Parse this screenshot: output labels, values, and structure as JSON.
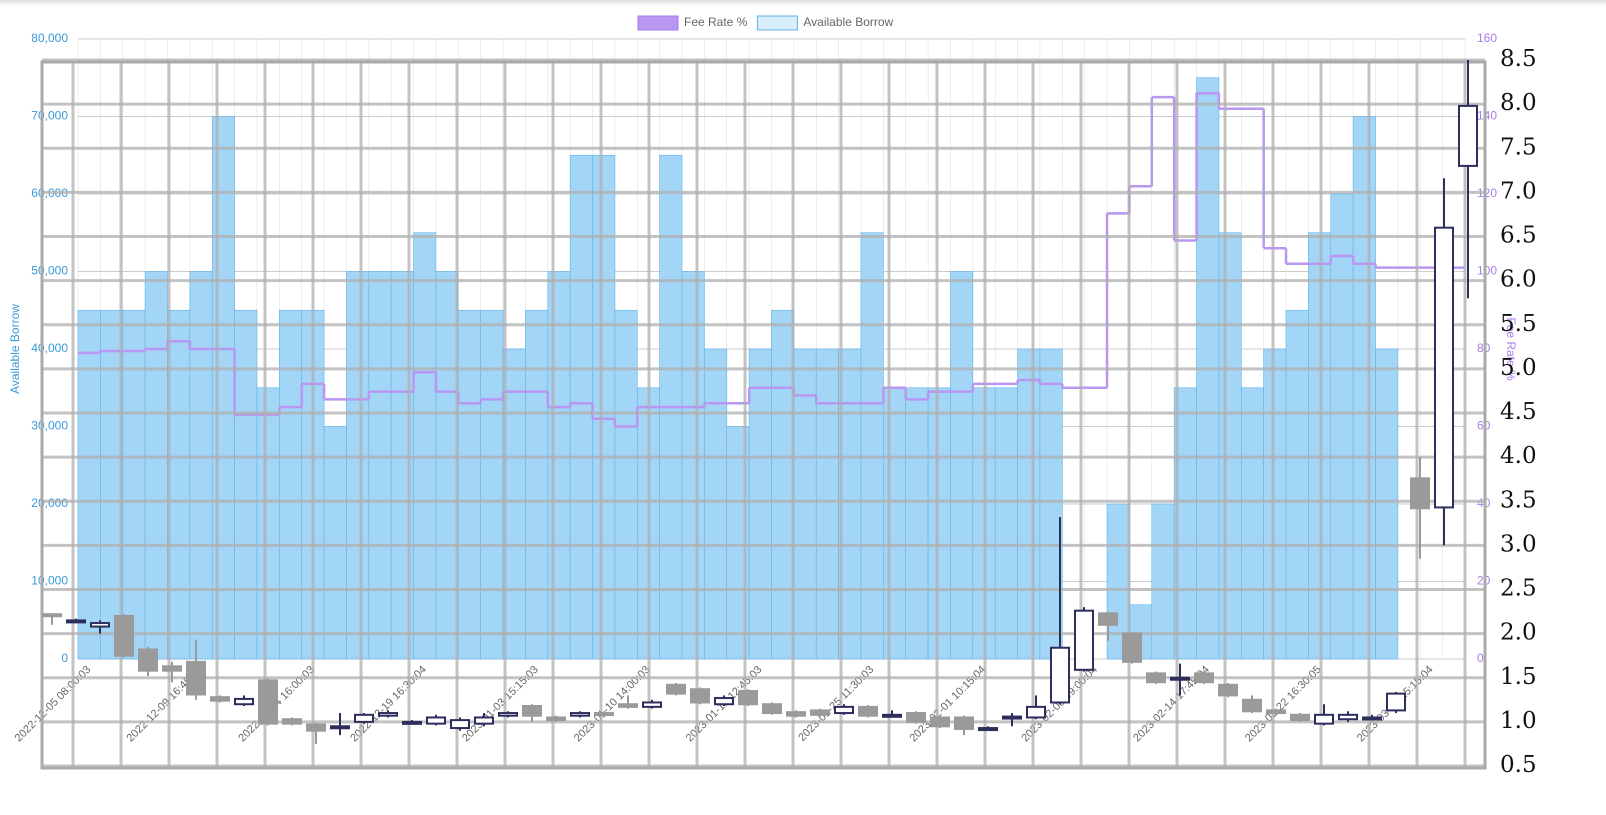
{
  "chart_data": [
    {
      "type": "bar",
      "legend": "top",
      "grid": true,
      "categories": [
        "2022-12-05 08:00:03",
        null,
        null,
        null,
        null,
        "2022-12-09 16:45:03",
        null,
        null,
        null,
        null,
        "2022-12-14 16:00:03",
        null,
        null,
        null,
        null,
        "2022-12-19 16:30:04",
        null,
        null,
        null,
        null,
        "2023-01-03 15:15:03",
        null,
        null,
        null,
        null,
        "2023-01-10 14:00:03",
        null,
        null,
        null,
        null,
        "2023-01-18 12:45:03",
        null,
        null,
        null,
        null,
        "2023-01-25 11:30:03",
        null,
        null,
        null,
        null,
        "2023-02-01 10:15:04",
        null,
        null,
        null,
        null,
        "2023-02-08 09:00:04",
        null,
        null,
        null,
        null,
        "2023-02-14 17:45:04",
        null,
        null,
        null,
        null,
        "2023-02-22 16:30:05",
        null,
        null,
        null,
        null,
        "2023-03-01 15:15:04",
        null
      ],
      "y_label": "Available Borrow",
      "y2_label": "Fee Rate %",
      "ylim": [
        0,
        80000
      ],
      "yticks": [
        0,
        {
          "value": 10000,
          "label": "10,000"
        },
        {
          "value": 20000,
          "label": "20,000"
        },
        {
          "value": 30000,
          "label": "30,000"
        },
        {
          "value": 40000,
          "label": "40,000"
        },
        {
          "value": 50000,
          "label": "50,000"
        },
        {
          "value": 60000,
          "label": "60,000"
        },
        {
          "value": 70000,
          "label": "70,000"
        },
        {
          "value": 80000,
          "label": "80,000"
        }
      ],
      "y2lim": [
        0,
        160
      ],
      "y2ticks": [
        0,
        20,
        40,
        60,
        80,
        100,
        120,
        140,
        160
      ],
      "series": [
        {
          "name": "Available Borrow",
          "type": "bar",
          "color": "#a3d5f7",
          "edge": "#5fb3ea",
          "values": [
            45000,
            45000,
            45000,
            50000,
            45000,
            50000,
            70000,
            45000,
            35000,
            45000,
            45000,
            30000,
            50000,
            50000,
            50000,
            55000,
            50000,
            45000,
            45000,
            40000,
            45000,
            50000,
            65000,
            65000,
            45000,
            35000,
            65000,
            50000,
            40000,
            30000,
            40000,
            45000,
            40000,
            40000,
            40000,
            55000,
            35000,
            35000,
            35000,
            50000,
            35000,
            35000,
            40000,
            40000,
            0,
            0,
            20000,
            7000,
            20000,
            35000,
            75000,
            55000,
            35000,
            40000,
            45000,
            55000,
            60000,
            70000,
            40000,
            0,
            0,
            0
          ]
        },
        {
          "name": "Fee Rate %",
          "type": "line",
          "axis": "y2",
          "color": "#b896f2",
          "values": [
            79,
            79.5,
            79.5,
            80,
            82,
            80,
            80,
            63,
            63,
            65,
            71,
            67,
            67,
            69,
            69,
            74,
            69,
            66,
            67,
            69,
            69,
            65,
            66,
            62,
            60,
            65,
            65,
            65,
            66,
            66,
            70,
            70,
            68,
            66,
            66,
            66,
            70,
            67,
            69,
            69,
            71,
            71,
            72,
            71,
            70,
            70,
            115,
            122,
            145,
            108,
            146,
            142,
            142,
            106,
            102,
            102,
            104,
            102,
            101,
            101,
            101,
            101
          ]
        }
      ]
    },
    {
      "type": "candlestick",
      "grid": true,
      "up_color": "#2e2e5e",
      "down_color": "#9a9a9a",
      "ylim": [
        0.5,
        8.5
      ],
      "yticks": [
        0.5,
        {
          "value": 1,
          "label": "1.0"
        },
        1.5,
        {
          "value": 2,
          "label": "2.0"
        },
        2.5,
        {
          "value": 3,
          "label": "3.0"
        },
        3.5,
        {
          "value": 4,
          "label": "4.0"
        },
        4.5,
        {
          "value": 5,
          "label": "5.0"
        },
        5.5,
        {
          "value": 6,
          "label": "6.0"
        },
        6.5,
        {
          "value": 7,
          "label": "7.0"
        },
        7.5,
        {
          "value": 8,
          "label": "8.0"
        },
        8.5
      ],
      "open": [
        2.22,
        2.15,
        2.08,
        2.2,
        1.82,
        1.63,
        1.68,
        1.28,
        1.2,
        1.47,
        1.03,
        0.97,
        0.93,
        1.0,
        1.07,
        1.0,
        0.98,
        0.93,
        0.98,
        1.07,
        1.18,
        1.05,
        1.07,
        1.1,
        1.2,
        1.17,
        1.42,
        1.37,
        1.2,
        1.35,
        1.2,
        1.11,
        1.13,
        1.1,
        1.17,
        1.08,
        1.1,
        1.05,
        1.05,
        0.93,
        1.05,
        1.05,
        1.22,
        1.59,
        2.23,
        2.0,
        1.55,
        1.5,
        1.55,
        1.42,
        1.25,
        1.13,
        1.08,
        0.98,
        1.03,
        1.05,
        1.13,
        3.76,
        3.43,
        7.3
      ],
      "high": [
        2.23,
        2.17,
        2.15,
        2.22,
        1.85,
        1.68,
        1.93,
        1.3,
        1.3,
        1.49,
        1.05,
        0.99,
        1.1,
        1.1,
        1.13,
        1.02,
        1.08,
        1.05,
        1.1,
        1.12,
        1.2,
        1.07,
        1.12,
        1.12,
        1.3,
        1.25,
        1.44,
        1.39,
        1.3,
        1.37,
        1.22,
        1.13,
        1.15,
        1.2,
        1.19,
        1.13,
        1.12,
        1.07,
        1.07,
        0.95,
        1.1,
        1.3,
        3.32,
        2.3,
        2.25,
        2.02,
        1.57,
        1.66,
        1.57,
        1.44,
        1.3,
        1.15,
        1.1,
        1.2,
        1.12,
        1.08,
        1.34,
        4.0,
        7.16,
        8.5
      ],
      "low": [
        2.1,
        2.13,
        2.0,
        1.73,
        1.52,
        1.45,
        1.25,
        1.22,
        1.18,
        0.96,
        0.96,
        0.75,
        0.85,
        0.98,
        1.05,
        0.98,
        0.96,
        0.9,
        0.95,
        1.05,
        1.0,
        1.0,
        1.05,
        1.05,
        1.15,
        1.15,
        1.3,
        1.2,
        1.18,
        1.18,
        1.08,
        1.05,
        1.06,
        1.08,
        1.05,
        1.06,
        0.98,
        0.93,
        0.85,
        0.91,
        0.95,
        1.03,
        1.2,
        1.57,
        1.92,
        1.66,
        1.43,
        1.3,
        1.43,
        1.28,
        1.1,
        1.08,
        1.0,
        0.96,
        1.0,
        1.03,
        1.1,
        2.85,
        3.0,
        5.8
      ],
      "close": [
        2.2,
        2.15,
        2.12,
        1.75,
        1.58,
        1.58,
        1.31,
        1.24,
        1.26,
        0.98,
        0.98,
        0.9,
        0.95,
        1.08,
        1.1,
        1.0,
        1.05,
        1.02,
        1.05,
        1.1,
        1.07,
        1.02,
        1.1,
        1.08,
        1.17,
        1.22,
        1.32,
        1.22,
        1.27,
        1.2,
        1.1,
        1.07,
        1.08,
        1.17,
        1.07,
        1.08,
        1.0,
        0.95,
        0.92,
        0.93,
        1.06,
        1.17,
        1.84,
        2.26,
        2.1,
        1.68,
        1.45,
        1.5,
        1.45,
        1.3,
        1.12,
        1.1,
        1.02,
        1.08,
        1.08,
        1.05,
        1.32,
        3.42,
        6.6,
        7.98
      ]
    }
  ]
}
